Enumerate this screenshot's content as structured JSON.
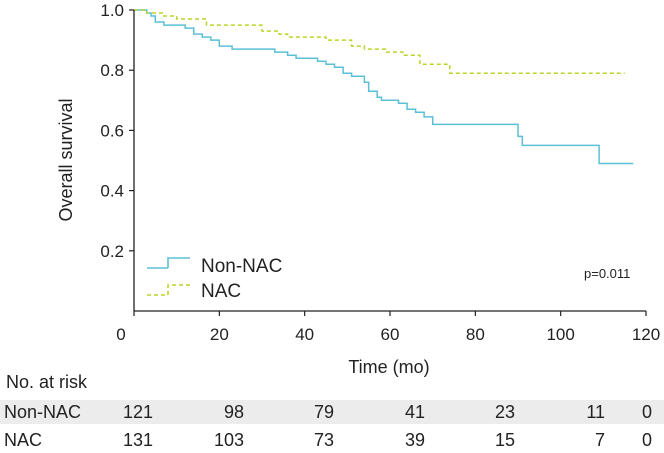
{
  "chart_data": {
    "type": "line",
    "subtype": "kaplan-meier",
    "ylabel": "Overall survival",
    "xlabel": "Time (mo)",
    "xlim": [
      0,
      120
    ],
    "ylim": [
      0,
      1.0
    ],
    "x_ticks": [
      0,
      20,
      40,
      60,
      80,
      100,
      120
    ],
    "y_ticks": [
      0.2,
      0.4,
      0.6,
      0.8,
      1.0
    ],
    "y_tick_labels": [
      "0.2",
      "0.4",
      "0.6",
      "0.8",
      "1.0"
    ],
    "annotation": "p=0.011",
    "series": [
      {
        "name": "Non-NAC",
        "color": "#5bc0d6",
        "style": "solid",
        "steps": [
          [
            0,
            1.0
          ],
          [
            3,
            0.99
          ],
          [
            4,
            0.98
          ],
          [
            5,
            0.96
          ],
          [
            7,
            0.95
          ],
          [
            12,
            0.94
          ],
          [
            14,
            0.92
          ],
          [
            16,
            0.91
          ],
          [
            18,
            0.9
          ],
          [
            20,
            0.88
          ],
          [
            23,
            0.87
          ],
          [
            33,
            0.86
          ],
          [
            36,
            0.85
          ],
          [
            38,
            0.84
          ],
          [
            43,
            0.83
          ],
          [
            45,
            0.82
          ],
          [
            47,
            0.81
          ],
          [
            49,
            0.79
          ],
          [
            51,
            0.78
          ],
          [
            54,
            0.76
          ],
          [
            55,
            0.73
          ],
          [
            57,
            0.71
          ],
          [
            58,
            0.7
          ],
          [
            62,
            0.69
          ],
          [
            64,
            0.67
          ],
          [
            66,
            0.66
          ],
          [
            68,
            0.645
          ],
          [
            70,
            0.62
          ],
          [
            90,
            0.58
          ],
          [
            91,
            0.55
          ],
          [
            109,
            0.49
          ],
          [
            117,
            0.49
          ]
        ]
      },
      {
        "name": "NAC",
        "color": "#bcd426",
        "style": "dashed",
        "steps": [
          [
            0,
            1.0
          ],
          [
            3,
            0.99
          ],
          [
            7,
            0.98
          ],
          [
            10,
            0.97
          ],
          [
            17,
            0.95
          ],
          [
            30,
            0.93
          ],
          [
            34,
            0.92
          ],
          [
            36,
            0.91
          ],
          [
            45,
            0.9
          ],
          [
            51,
            0.88
          ],
          [
            54,
            0.87
          ],
          [
            59,
            0.86
          ],
          [
            63,
            0.85
          ],
          [
            67,
            0.82
          ],
          [
            74,
            0.79
          ],
          [
            115,
            0.79
          ]
        ]
      }
    ],
    "risk_table": {
      "title": "No. at risk",
      "times": [
        0,
        20,
        40,
        60,
        80,
        100,
        120
      ],
      "rows": [
        {
          "label": "Non-NAC",
          "values": [
            "121",
            "98",
            "79",
            "41",
            "23",
            "11",
            "0"
          ]
        },
        {
          "label": "NAC",
          "values": [
            "131",
            "103",
            "73",
            "39",
            "15",
            "7",
            "0"
          ]
        }
      ]
    }
  }
}
